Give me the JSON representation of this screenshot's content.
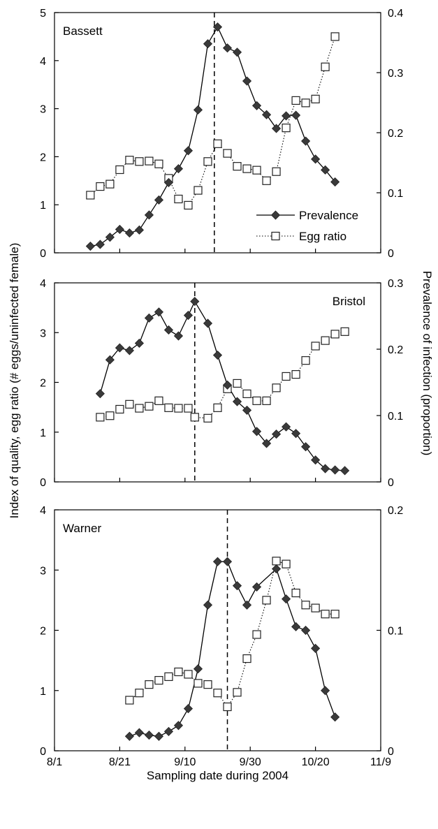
{
  "chart_data": {
    "type": "line",
    "xlabel": "Sampling date during 2004",
    "ylabel_left": "Index of quality, egg ratio (# eggs/uninfected female)",
    "ylabel_right": "Prevalence of infection (proportion)",
    "x_ticks": [
      "8/1",
      "8/21",
      "9/10",
      "9/30",
      "10/20",
      "11/9"
    ],
    "x_tick_dates": [
      "2004-08-01",
      "2004-08-21",
      "2004-09-10",
      "2004-09-30",
      "2004-10-20",
      "2004-11-09"
    ],
    "xlim": [
      "2004-08-01",
      "2004-11-09"
    ],
    "legend": {
      "position": "lower-right of top panel",
      "entries": [
        "Prevalence",
        "Egg ratio"
      ]
    },
    "panels": [
      {
        "title": "Bassett",
        "left_ylim": [
          0,
          5
        ],
        "left_ticks": [
          "0",
          "1",
          "2",
          "3",
          "4",
          "5"
        ],
        "right_ylim": [
          0,
          0.4
        ],
        "right_ticks": [
          "0",
          "0.1",
          "0.2",
          "0.3",
          "0.4"
        ],
        "vline_date": "2004-09-19",
        "series": [
          {
            "name": "Prevalence",
            "axis": "right",
            "style": "solid line, filled diamonds",
            "x": [
              "2004-08-12",
              "2004-08-15",
              "2004-08-18",
              "2004-08-21",
              "2004-08-24",
              "2004-08-27",
              "2004-08-30",
              "2004-09-02",
              "2004-09-05",
              "2004-09-08",
              "2004-09-11",
              "2004-09-14",
              "2004-09-17",
              "2004-09-20",
              "2004-09-23",
              "2004-09-26",
              "2004-09-29",
              "2004-10-02",
              "2004-10-05",
              "2004-10-08",
              "2004-10-11",
              "2004-10-14",
              "2004-10-17",
              "2004-10-20",
              "2004-10-23",
              "2004-10-26"
            ],
            "values": [
              0.011,
              0.014,
              0.026,
              0.039,
              0.033,
              0.038,
              0.063,
              0.088,
              0.117,
              0.14,
              0.17,
              0.238,
              0.348,
              0.376,
              0.341,
              0.334,
              0.286,
              0.245,
              0.23,
              0.207,
              0.228,
              0.229,
              0.186,
              0.156,
              0.138,
              0.118
            ]
          },
          {
            "name": "Egg ratio",
            "axis": "left",
            "style": "dotted line, open squares",
            "x": [
              "2004-08-12",
              "2004-08-15",
              "2004-08-18",
              "2004-08-21",
              "2004-08-24",
              "2004-08-27",
              "2004-08-30",
              "2004-09-02",
              "2004-09-05",
              "2004-09-08",
              "2004-09-11",
              "2004-09-14",
              "2004-09-17",
              "2004-09-20",
              "2004-09-23",
              "2004-09-26",
              "2004-09-29",
              "2004-10-02",
              "2004-10-05",
              "2004-10-08",
              "2004-10-11",
              "2004-10-14",
              "2004-10-17",
              "2004-10-20",
              "2004-10-23",
              "2004-10-26"
            ],
            "values": [
              1.2,
              1.38,
              1.43,
              1.73,
              1.93,
              1.9,
              1.91,
              1.85,
              1.55,
              1.12,
              0.99,
              1.3,
              1.9,
              2.27,
              2.07,
              1.8,
              1.75,
              1.72,
              1.5,
              1.69,
              2.6,
              3.17,
              3.12,
              3.2,
              3.87,
              4.5
            ]
          }
        ]
      },
      {
        "title": "Bristol",
        "left_ylim": [
          0,
          4
        ],
        "left_ticks": [
          "0",
          "1",
          "2",
          "3",
          "4"
        ],
        "right_ylim": [
          0,
          0.3
        ],
        "right_ticks": [
          "0",
          "0.1",
          "0.2",
          "0.3"
        ],
        "vline_date": "2004-09-13",
        "series": [
          {
            "name": "Prevalence",
            "axis": "right",
            "style": "solid line, filled diamonds",
            "x": [
              "2004-08-15",
              "2004-08-18",
              "2004-08-21",
              "2004-08-24",
              "2004-08-27",
              "2004-08-30",
              "2004-09-02",
              "2004-09-05",
              "2004-09-08",
              "2004-09-11",
              "2004-09-13",
              "2004-09-17",
              "2004-09-20",
              "2004-09-23",
              "2004-09-26",
              "2004-09-29",
              "2004-10-02",
              "2004-10-05",
              "2004-10-08",
              "2004-10-11",
              "2004-10-14",
              "2004-10-17",
              "2004-10-20",
              "2004-10-23",
              "2004-10-26",
              "2004-10-29"
            ],
            "values": [
              0.133,
              0.184,
              0.202,
              0.198,
              0.209,
              0.247,
              0.256,
              0.229,
              0.22,
              0.251,
              0.272,
              0.239,
              0.191,
              0.146,
              0.121,
              0.108,
              0.076,
              0.058,
              0.072,
              0.083,
              0.073,
              0.053,
              0.033,
              0.02,
              0.018,
              0.017
            ]
          },
          {
            "name": "Egg ratio",
            "axis": "left",
            "style": "dotted line, open squares",
            "x": [
              "2004-08-15",
              "2004-08-18",
              "2004-08-21",
              "2004-08-24",
              "2004-08-27",
              "2004-08-30",
              "2004-09-02",
              "2004-09-05",
              "2004-09-08",
              "2004-09-11",
              "2004-09-13",
              "2004-09-17",
              "2004-09-20",
              "2004-09-23",
              "2004-09-26",
              "2004-09-29",
              "2004-10-02",
              "2004-10-05",
              "2004-10-08",
              "2004-10-11",
              "2004-10-14",
              "2004-10-17",
              "2004-10-20",
              "2004-10-23",
              "2004-10-26",
              "2004-10-29"
            ],
            "values": [
              1.3,
              1.33,
              1.46,
              1.56,
              1.48,
              1.52,
              1.63,
              1.49,
              1.48,
              1.48,
              1.3,
              1.28,
              1.49,
              1.87,
              1.98,
              1.77,
              1.63,
              1.63,
              1.89,
              2.12,
              2.16,
              2.44,
              2.73,
              2.84,
              2.97,
              3.02
            ]
          }
        ]
      },
      {
        "title": "Warner",
        "left_ylim": [
          0,
          4
        ],
        "left_ticks": [
          "0",
          "1",
          "2",
          "3",
          "4"
        ],
        "right_ylim": [
          0,
          0.2
        ],
        "right_ticks": [
          "0",
          "0.1",
          "0.2"
        ],
        "vline_date": "2004-09-23",
        "series": [
          {
            "name": "Prevalence",
            "axis": "right",
            "style": "solid line, filled diamonds",
            "x": [
              "2004-08-24",
              "2004-08-27",
              "2004-08-30",
              "2004-09-02",
              "2004-09-05",
              "2004-09-08",
              "2004-09-11",
              "2004-09-14",
              "2004-09-17",
              "2004-09-20",
              "2004-09-23",
              "2004-09-26",
              "2004-09-29",
              "2004-10-02",
              "2004-10-08",
              "2004-10-11",
              "2004-10-14",
              "2004-10-17",
              "2004-10-20",
              "2004-10-23",
              "2004-10-26"
            ],
            "values": [
              0.012,
              0.015,
              0.013,
              0.012,
              0.016,
              0.021,
              0.035,
              0.068,
              0.121,
              0.157,
              0.157,
              0.137,
              0.121,
              0.136,
              0.151,
              0.126,
              0.103,
              0.1,
              0.085,
              0.05,
              0.028
            ]
          },
          {
            "name": "Egg ratio",
            "axis": "left",
            "style": "dotted line, open squares",
            "x": [
              "2004-08-24",
              "2004-08-27",
              "2004-08-30",
              "2004-09-02",
              "2004-09-05",
              "2004-09-08",
              "2004-09-11",
              "2004-09-14",
              "2004-09-17",
              "2004-09-20",
              "2004-09-23",
              "2004-09-26",
              "2004-09-29",
              "2004-10-02",
              "2004-10-05",
              "2004-10-08",
              "2004-10-11",
              "2004-10-14",
              "2004-10-17",
              "2004-10-20",
              "2004-10-23",
              "2004-10-26"
            ],
            "values": [
              0.84,
              0.96,
              1.1,
              1.17,
              1.23,
              1.31,
              1.27,
              1.12,
              1.1,
              0.96,
              0.73,
              0.97,
              1.53,
              1.93,
              2.5,
              3.15,
              3.1,
              2.62,
              2.42,
              2.37,
              2.27,
              2.27
            ]
          }
        ]
      }
    ]
  }
}
